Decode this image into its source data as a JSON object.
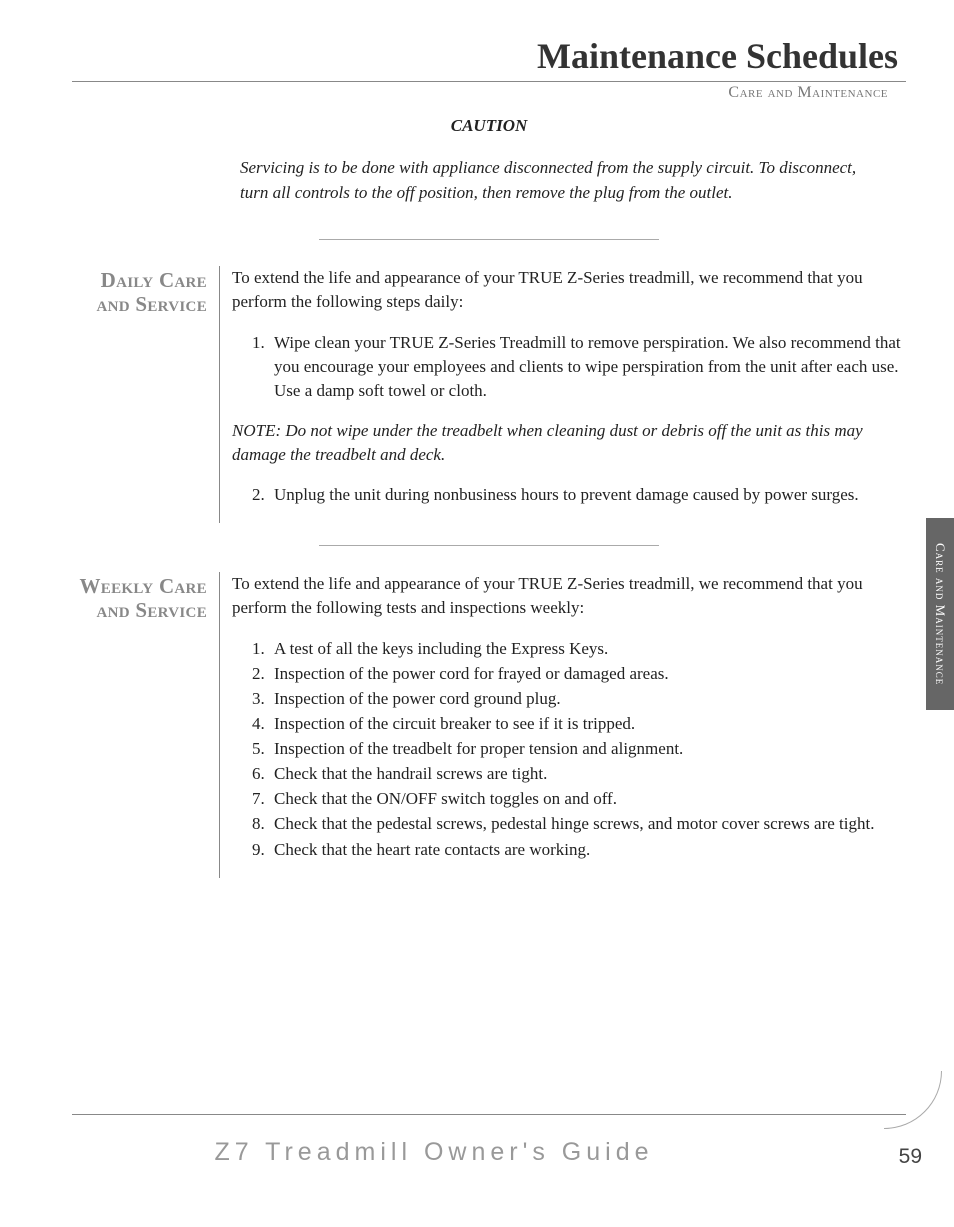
{
  "header": {
    "title": "Maintenance Schedules",
    "subtitle": "Care and Maintenance"
  },
  "caution": {
    "heading": "CAUTION",
    "body": "Servicing is to be done with appliance disconnected from the supply circuit. To disconnect, turn all controls to the off position, then remove the plug from the outlet."
  },
  "daily": {
    "label_line1": "Daily Care",
    "label_line2": "and Service",
    "intro": "To extend the life and appearance of your TRUE Z-Series treadmill, we recommend that you perform the following steps daily:",
    "item1_num": "1.",
    "item1": "Wipe clean your TRUE Z-Series Treadmill to remove perspiration.  We also recommend that you encourage your employees and clients to wipe perspiration from the unit after each use.  Use a damp soft towel or cloth.",
    "note": "NOTE: Do not wipe under the treadbelt when cleaning dust or debris off the unit as this may damage the treadbelt and deck.",
    "item2_num": "2.",
    "item2": "Unplug the unit during nonbusiness hours to prevent damage caused by power surges."
  },
  "weekly": {
    "label_line1": "Weekly Care",
    "label_line2": "and Service",
    "intro": "To extend the life and appearance of your TRUE Z-Series treadmill, we recommend that you perform the following tests and inspections weekly:",
    "items": [
      {
        "num": "1.",
        "text": "A test of all the keys including the Express Keys."
      },
      {
        "num": "2.",
        "text": "Inspection of the power cord for frayed or damaged areas."
      },
      {
        "num": "3.",
        "text": "Inspection of the power cord ground plug."
      },
      {
        "num": "4.",
        "text": "Inspection of the circuit breaker to see if it is tripped."
      },
      {
        "num": "5.",
        "text": "Inspection of the treadbelt for proper tension and alignment."
      },
      {
        "num": "6.",
        "text": "Check that the handrail screws are tight."
      },
      {
        "num": "7.",
        "text": "Check that the ON/OFF switch toggles on and off."
      },
      {
        "num": "8.",
        "text": "Check that the pedestal screws, pedestal hinge screws, and motor cover screws are tight."
      },
      {
        "num": "9.",
        "text": "Check that the heart rate contacts are working."
      }
    ]
  },
  "side_tab": "Care and Maintenance",
  "footer": {
    "title": "Z7 Treadmill Owner's Guide",
    "page_number": "59"
  }
}
